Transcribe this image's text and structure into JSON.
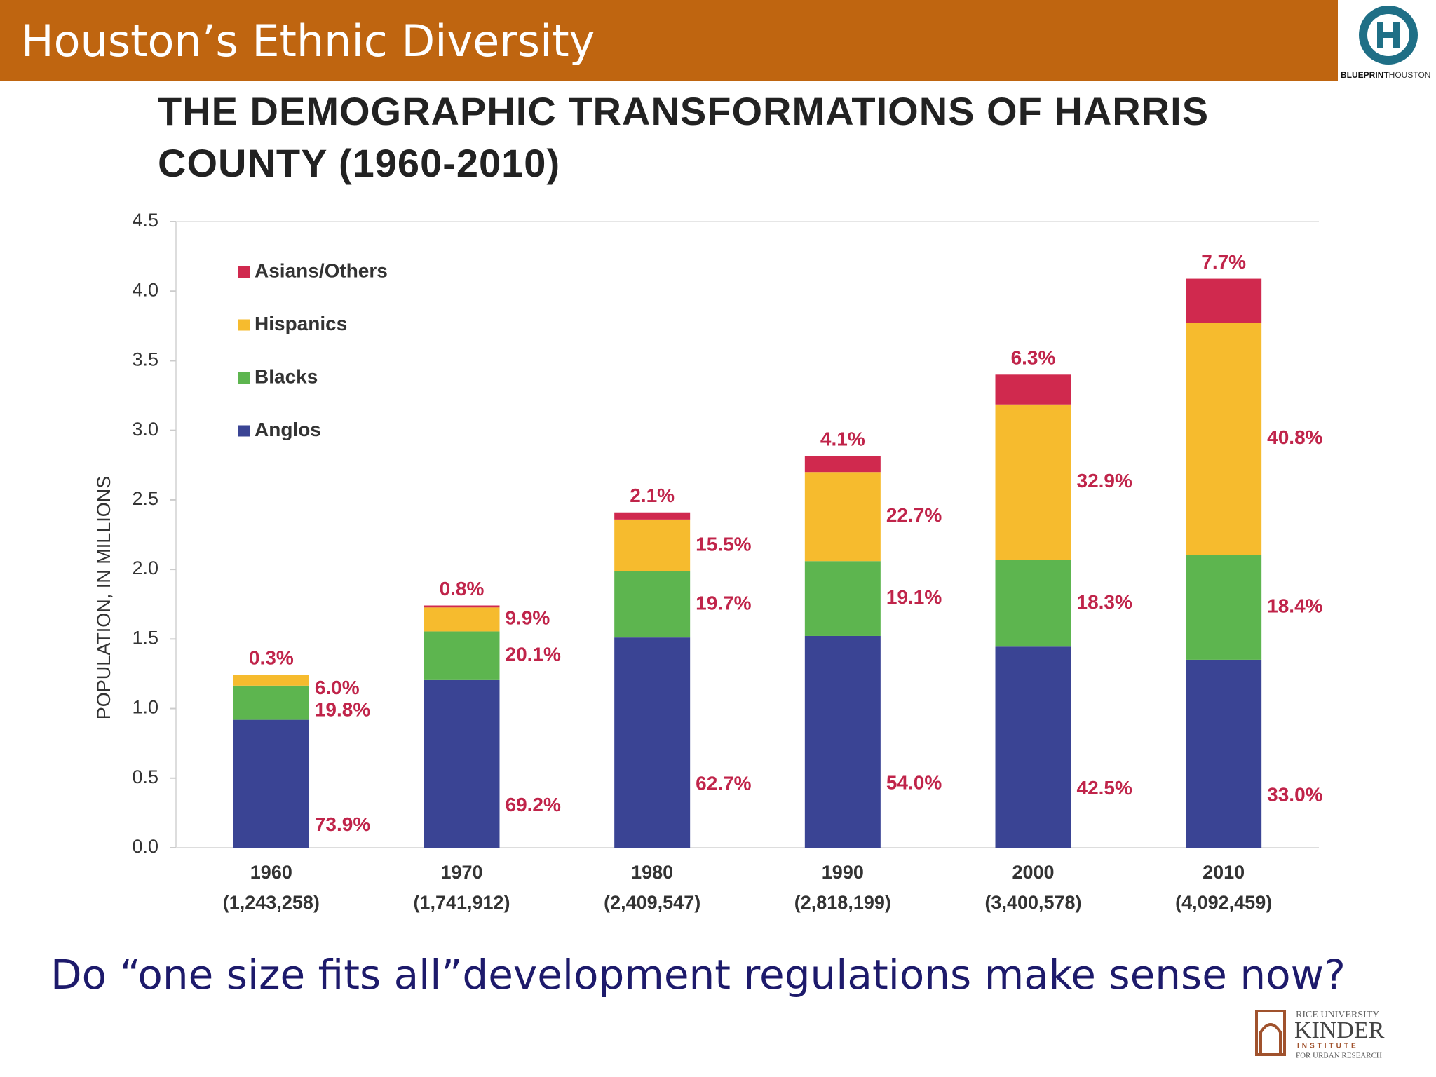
{
  "header": {
    "title": "Houston’s Ethnic Diversity",
    "logo_bold": "BLUEPRINT",
    "logo_light": "HOUSTON"
  },
  "chart_data": {
    "type": "stacked_bar",
    "title": "THE DEMOGRAPHIC TRANSFORMATIONS OF HARRIS COUNTY (1960-2010)",
    "y_label": "POPULATION, IN MILLIONS",
    "categories": [
      "1960",
      "1970",
      "1980",
      "1990",
      "2000",
      "2010"
    ],
    "category_totals": [
      "(1,243,258)",
      "(1,741,912)",
      "(2,409,547)",
      "(2,818,199)",
      "(3,400,578)",
      "(4,092,459)"
    ],
    "series": [
      {
        "name": "Anglos",
        "color": "#3a4494",
        "values": [
          0.919,
          1.205,
          1.511,
          1.522,
          1.445,
          1.351
        ],
        "value_labels": [
          "73.9%",
          "69.2%",
          "62.7%",
          "54.0%",
          "42.5%",
          "33.0%"
        ]
      },
      {
        "name": "Blacks",
        "color": "#5db54f",
        "values": [
          0.246,
          0.35,
          0.475,
          0.538,
          0.622,
          0.753
        ],
        "value_labels": [
          "19.8%",
          "20.1%",
          "19.7%",
          "19.1%",
          "18.3%",
          "18.4%"
        ]
      },
      {
        "name": "Hispanics",
        "color": "#f6bb2e",
        "values": [
          0.075,
          0.172,
          0.373,
          0.64,
          1.119,
          1.67
        ],
        "value_labels": [
          "6.0%",
          "9.9%",
          "15.5%",
          "22.7%",
          "32.9%",
          "40.8%"
        ]
      },
      {
        "name": "Asians/Others",
        "color": "#d0294e",
        "values": [
          0.004,
          0.014,
          0.051,
          0.116,
          0.214,
          0.315
        ],
        "value_labels": [
          "0.3%",
          "0.8%",
          "2.1%",
          "4.1%",
          "6.3%",
          "7.7%"
        ]
      }
    ],
    "ylim": [
      0,
      4.5
    ],
    "yticks": [
      {
        "value": 0,
        "label": "0.0"
      },
      {
        "value": 0.5,
        "label": "0.5"
      },
      {
        "value": 1,
        "label": "1.0"
      },
      {
        "value": 1.5,
        "label": "1.5"
      },
      {
        "value": 2,
        "label": "2.0"
      },
      {
        "value": 2.5,
        "label": "2.5"
      },
      {
        "value": 3,
        "label": "3.0"
      },
      {
        "value": 3.5,
        "label": "3.5"
      },
      {
        "value": 4,
        "label": "4.0"
      },
      {
        "value": 4.5,
        "label": "4.5"
      }
    ],
    "grid": false,
    "legend": "upper-left"
  },
  "question": "Do “one size fits all”development regulations make sense now?",
  "footer_logo": {
    "line1": "RICE UNIVERSITY",
    "line2": "KINDER",
    "line3": "INSTITUTE",
    "line4": "FOR URBAN RESEARCH"
  }
}
